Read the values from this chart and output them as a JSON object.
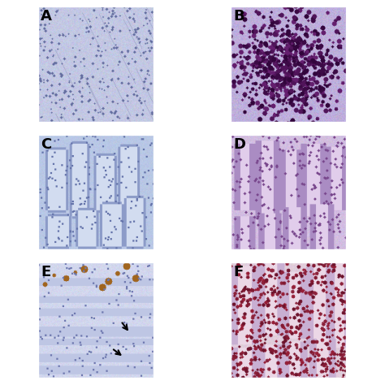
{
  "panels": [
    "A",
    "B",
    "C",
    "D",
    "E",
    "F"
  ],
  "grid_rows": 3,
  "grid_cols": 2,
  "label_color": "black",
  "label_fontsize": 13,
  "label_fontweight": "bold",
  "background_color": "white",
  "border_color": "white",
  "border_width": 6,
  "figsize": [
    4.74,
    4.74
  ],
  "dpi": 100
}
